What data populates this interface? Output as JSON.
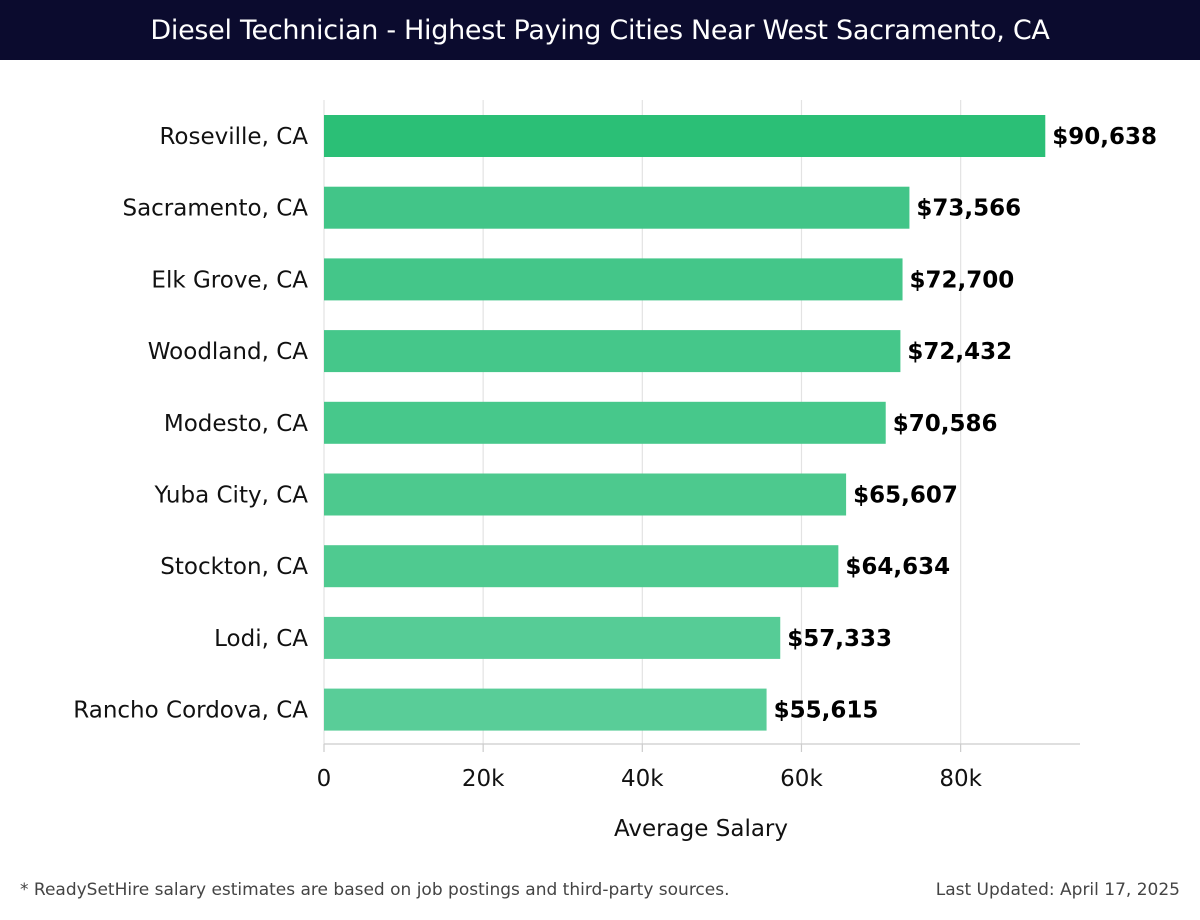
{
  "header": {
    "title": "Diesel Technician - Highest Paying Cities Near West Sacramento, CA",
    "background": "#0b0b2e"
  },
  "chart_data": {
    "type": "bar",
    "orientation": "horizontal",
    "categories": [
      "Roseville, CA",
      "Sacramento, CA",
      "Elk Grove, CA",
      "Woodland, CA",
      "Modesto, CA",
      "Yuba City, CA",
      "Stockton, CA",
      "Lodi, CA",
      "Rancho Cordova, CA"
    ],
    "values": [
      90638,
      73566,
      72700,
      72432,
      70586,
      65607,
      64634,
      57333,
      55615
    ],
    "value_labels": [
      "$90,638",
      "$73,566",
      "$72,700",
      "$72,432",
      "$70,586",
      "$65,607",
      "$64,634",
      "$57,333",
      "$55,615"
    ],
    "xlabel": "Average Salary",
    "ylabel": "",
    "xlim": [
      0,
      95000
    ],
    "xticks": [
      0,
      20000,
      40000,
      60000,
      80000
    ],
    "xtick_labels": [
      "0",
      "20k",
      "40k",
      "60k",
      "80k"
    ],
    "grid": "vertical",
    "bar_colors": [
      "#2bbf76",
      "#42c588",
      "#44c689",
      "#45c78a",
      "#47c88b",
      "#4dc98e",
      "#4fca90",
      "#56cc96",
      "#59cd98"
    ]
  },
  "footer": {
    "note": "* ReadySetHire salary estimates are based on job postings and third-party sources.",
    "updated": "Last Updated: April 17, 2025"
  }
}
